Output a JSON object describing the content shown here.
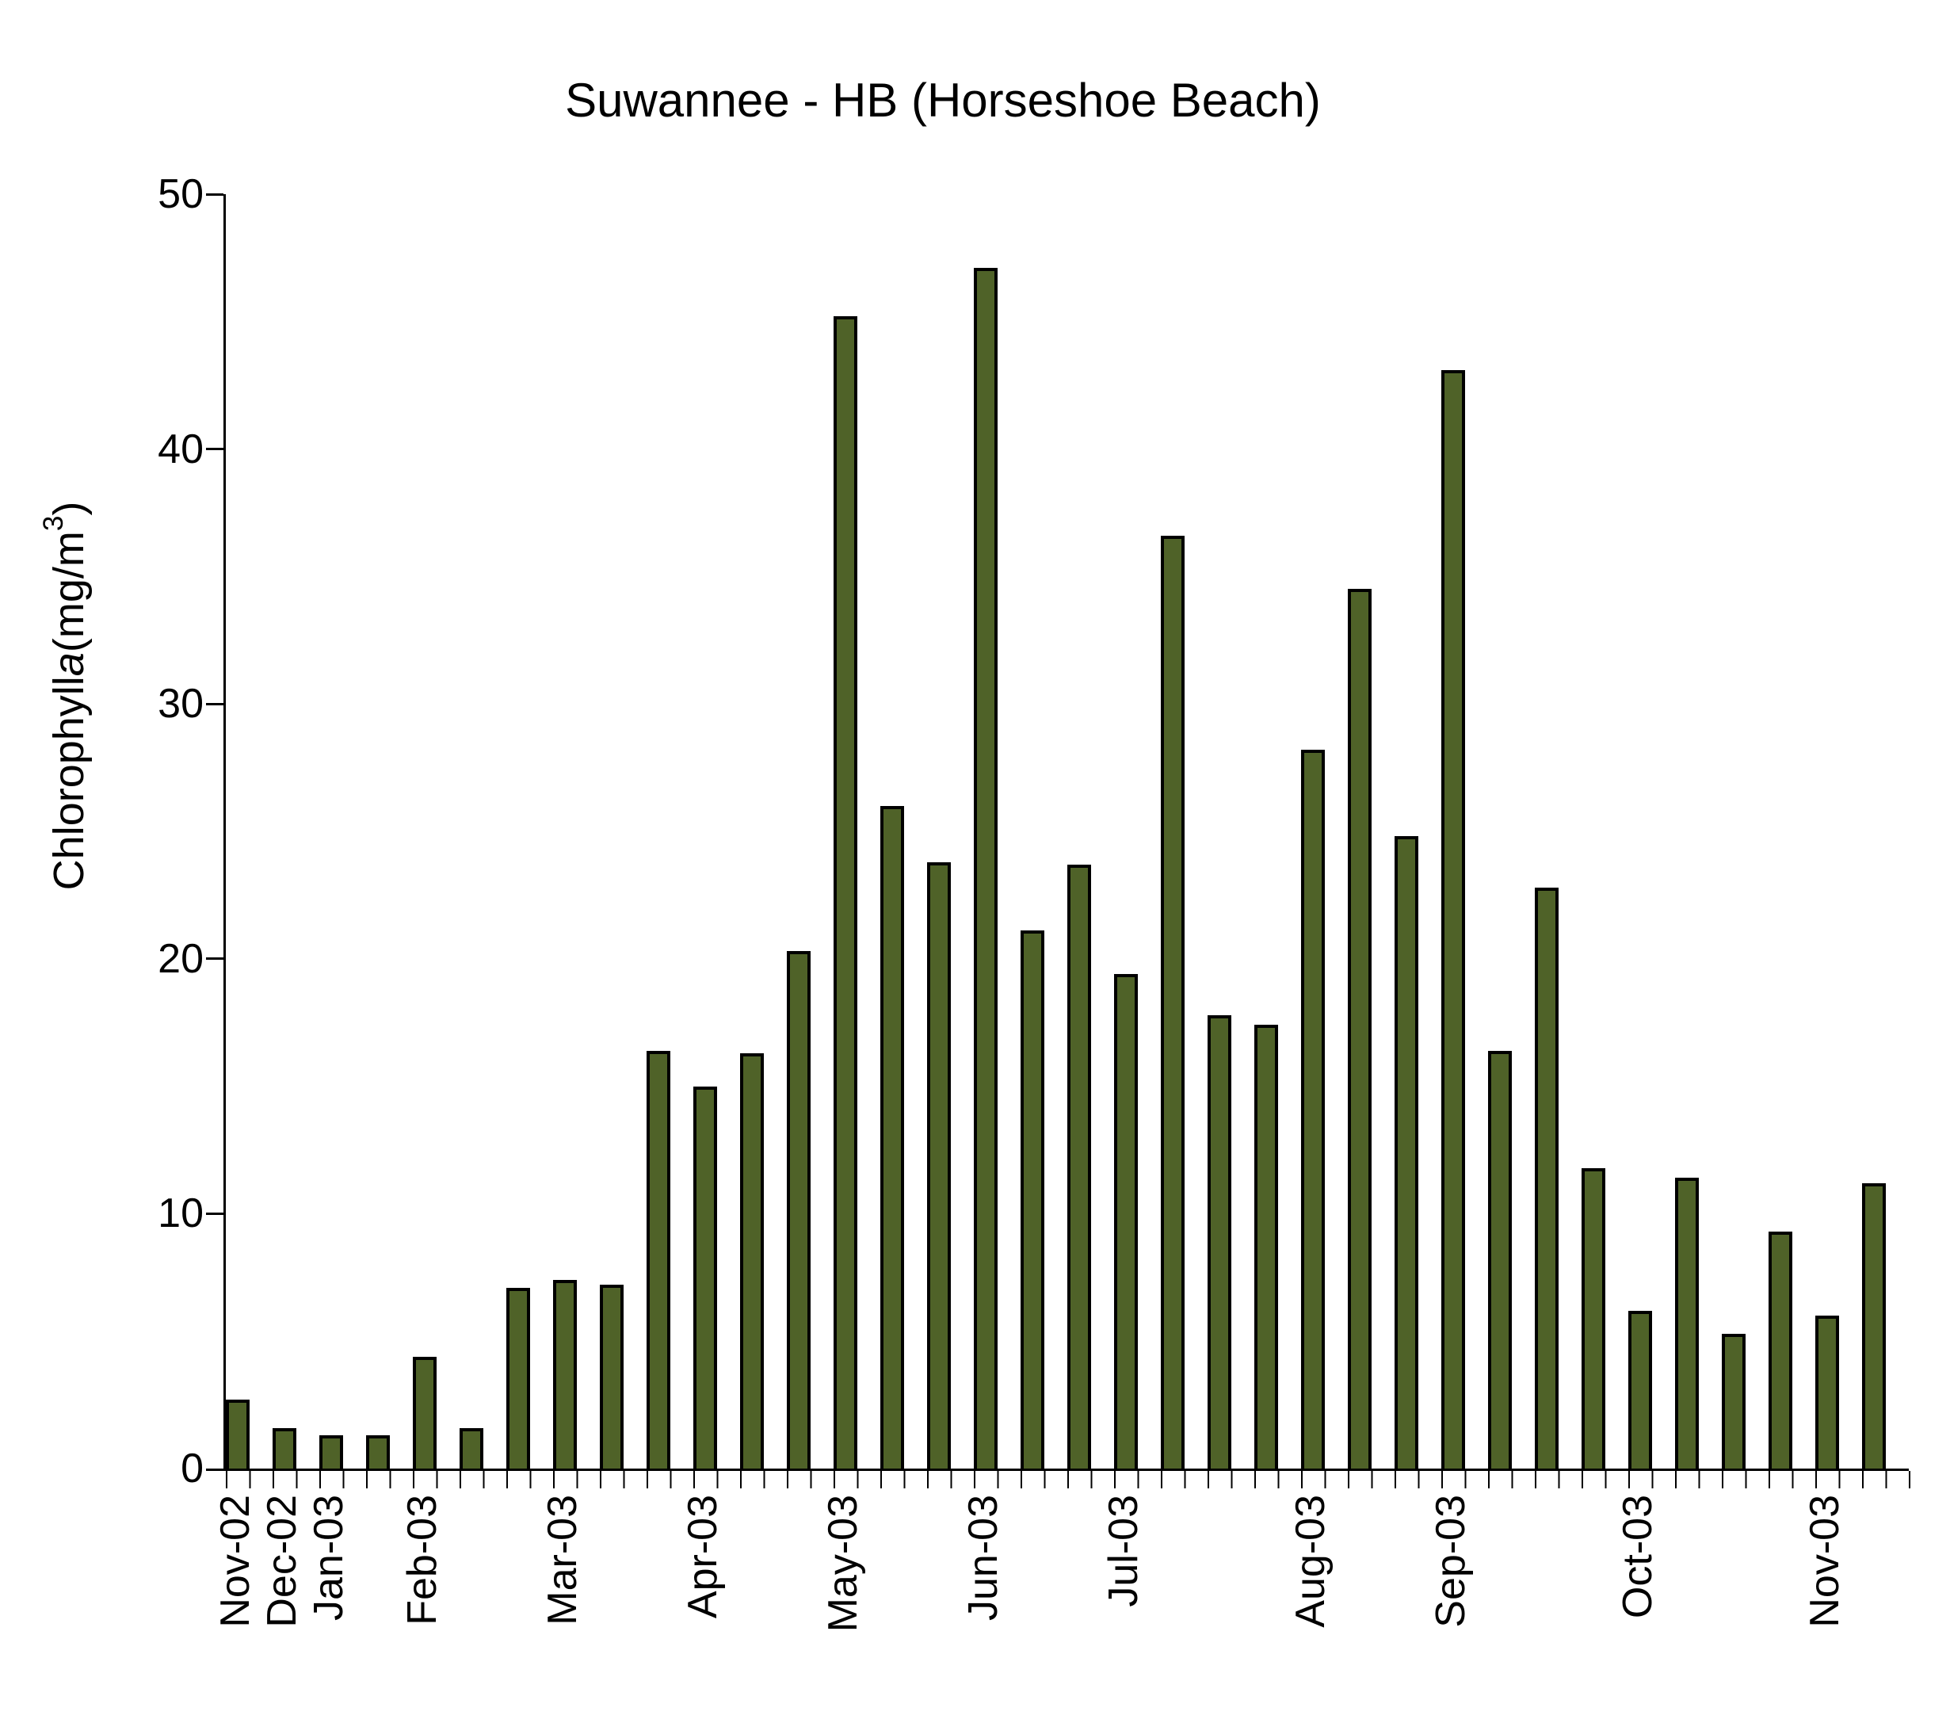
{
  "page": {
    "background": "#FFFFFF"
  },
  "chart_data": {
    "type": "bar",
    "title": "Suwannee - HB (Horseshoe Beach)",
    "ylabel": "Chlorophyll a (mg/m3)",
    "ylabel_parts": {
      "prefix": "Chlorophyll",
      "italic": "a",
      "unit_open": "(mg/m",
      "superscript": "3",
      "unit_close": ")"
    },
    "ylim": [
      0,
      50
    ],
    "yticks": [
      0,
      10,
      20,
      30,
      40,
      50
    ],
    "grid": false,
    "legend_position": "none",
    "bar_color": "#4F6228",
    "bar_border_color": "#000000",
    "axis_color": "#000000",
    "categories": [
      "Nov-02",
      "Dec-02",
      "Jan-03",
      "",
      "Feb-03",
      "",
      "",
      "Mar-03",
      "",
      "",
      "Apr-03",
      "",
      "",
      "May-03",
      "",
      "",
      "Jun-03",
      "",
      "",
      "Jul-03",
      "",
      "",
      "",
      "Aug-03",
      "",
      "",
      "Sep-03",
      "",
      "",
      "",
      "Oct-03",
      "",
      "",
      "",
      "Nov-03",
      ""
    ],
    "values": [
      2.7,
      1.6,
      1.3,
      1.3,
      4.4,
      1.6,
      7.1,
      7.4,
      7.2,
      16.4,
      15.0,
      16.3,
      20.3,
      45.2,
      26.0,
      23.8,
      47.1,
      21.1,
      23.7,
      19.4,
      36.6,
      17.8,
      17.4,
      28.2,
      34.5,
      24.8,
      43.1,
      16.4,
      22.8,
      11.8,
      6.2,
      11.4,
      5.3,
      9.3,
      6.0,
      11.2
    ]
  }
}
